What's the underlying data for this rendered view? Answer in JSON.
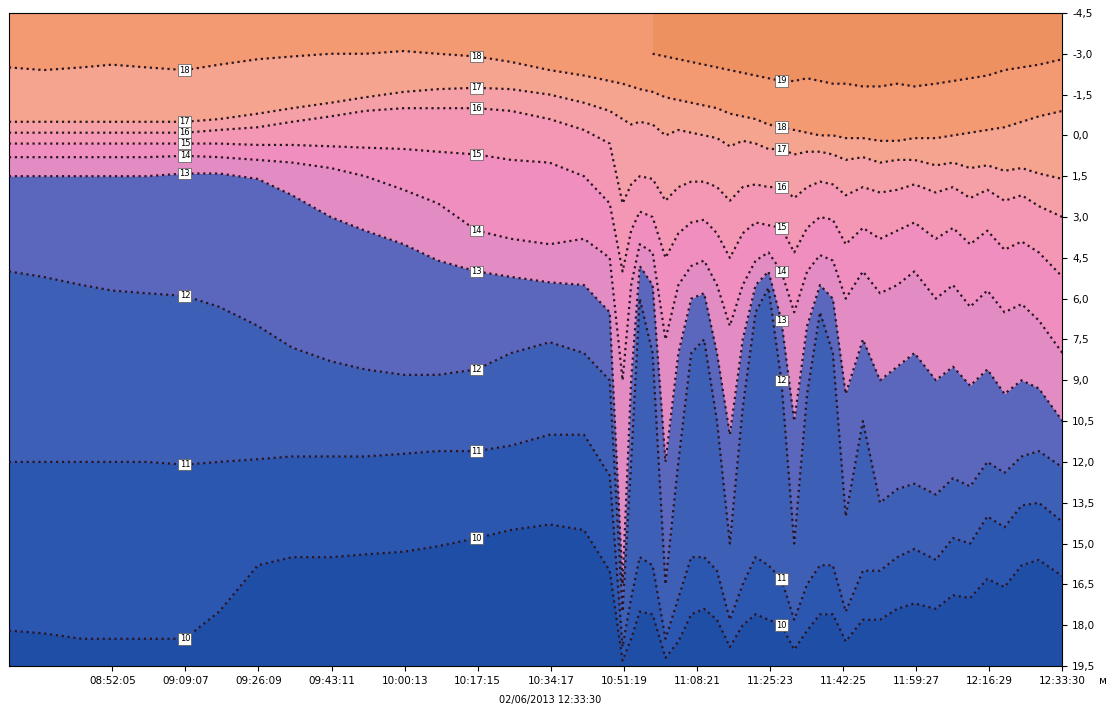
{
  "chart_data": {
    "type": "contour",
    "color": "#1f4ea6",
    "line_style": "dotted",
    "xlabel": "02/06/2013 12:33:30",
    "ylabel": "м",
    "x": [
      "08:28:00",
      "08:36:00",
      "08:45:00",
      "08:52:00",
      "09:00:00",
      "09:09:00",
      "09:17:00",
      "09:26:00",
      "09:34:00",
      "09:43:00",
      "09:51:00",
      "10:00:00",
      "10:08:00",
      "10:17:00",
      "10:25:00",
      "10:34:00",
      "10:42:00",
      "10:48:00",
      "10:51:00",
      "10:53:00",
      "10:55:00",
      "10:58:00",
      "11:01:00",
      "11:04:00",
      "11:07:00",
      "11:10:00",
      "11:13:00",
      "11:16:00",
      "11:19:00",
      "11:22:00",
      "11:25:00",
      "11:28:00",
      "11:31:00",
      "11:34:00",
      "11:37:00",
      "11:40:00",
      "11:43:00",
      "11:47:00",
      "11:51:00",
      "11:55:00",
      "11:59:00",
      "12:04:00",
      "12:08:00",
      "12:12:00",
      "12:16:00",
      "12:20:00",
      "12:24:00",
      "12:28:00",
      "12:33:30"
    ],
    "xlim": [
      "08:28:00",
      "12:33:30"
    ],
    "xticks": [
      "08:52:05",
      "09:09:07",
      "09:26:09",
      "09:43:11",
      "10:00:13",
      "10:17:15",
      "10:34:17",
      "10:51:19",
      "11:08:21",
      "11:25:23",
      "11:42:25",
      "11:59:27",
      "12:16:29",
      "12:33:30"
    ],
    "ylim": [
      19.5,
      -4.5
    ],
    "yticks": [
      {
        "value": -4.5,
        "label": "-4,5"
      },
      {
        "value": -3.0,
        "label": "-3,0"
      },
      {
        "value": -1.5,
        "label": "-1,5"
      },
      {
        "value": 0.0,
        "label": "0,0"
      },
      {
        "value": 1.5,
        "label": "1,5"
      },
      {
        "value": 3.0,
        "label": "3,0"
      },
      {
        "value": 4.5,
        "label": "4,5"
      },
      {
        "value": 6.0,
        "label": "6,0"
      },
      {
        "value": 7.5,
        "label": "7,5"
      },
      {
        "value": 9.0,
        "label": "9,0"
      },
      {
        "value": 10.5,
        "label": "10,5"
      },
      {
        "value": 12.0,
        "label": "12,0"
      },
      {
        "value": 13.5,
        "label": "13,5"
      },
      {
        "value": 15.0,
        "label": "15,0"
      },
      {
        "value": 16.5,
        "label": "16,5"
      },
      {
        "value": 18.0,
        "label": "18,0"
      },
      {
        "value": 19.5,
        "label": "19,5"
      }
    ],
    "series": [
      {
        "name": "19",
        "color": "#ee9160",
        "values": [
          null,
          null,
          null,
          null,
          null,
          null,
          null,
          null,
          null,
          null,
          null,
          null,
          null,
          null,
          null,
          null,
          null,
          null,
          null,
          null,
          null,
          -3.0,
          -2.9,
          -2.8,
          -2.7,
          -2.6,
          -2.5,
          -2.4,
          -2.3,
          -2.2,
          -2.1,
          -2.0,
          -2.0,
          -2.1,
          -2.0,
          -1.9,
          -1.9,
          -1.8,
          -1.8,
          -1.9,
          -1.8,
          -1.9,
          -2.0,
          -2.1,
          -2.2,
          -2.4,
          -2.5,
          -2.6,
          -2.8
        ]
      },
      {
        "name": "18",
        "color": "#f49a73",
        "values": [
          -2.5,
          -2.4,
          -2.5,
          -2.6,
          -2.5,
          -2.4,
          -2.6,
          -2.8,
          -2.9,
          -3.0,
          -3.0,
          -3.1,
          -3.0,
          -2.9,
          -2.7,
          -2.4,
          -2.2,
          -2.0,
          -1.9,
          -1.8,
          -1.7,
          -1.6,
          -1.4,
          -1.3,
          -1.2,
          -1.1,
          -1.0,
          -0.8,
          -0.7,
          -0.6,
          -0.4,
          -0.3,
          -0.2,
          -0.1,
          0.0,
          0.0,
          0.1,
          0.1,
          0.2,
          0.2,
          0.1,
          0.1,
          0.0,
          -0.1,
          -0.2,
          -0.3,
          -0.5,
          -0.7,
          -0.9
        ]
      },
      {
        "name": "17",
        "color": "#f5a58f",
        "values": [
          -0.5,
          -0.5,
          -0.5,
          -0.5,
          -0.5,
          -0.5,
          -0.6,
          -0.8,
          -1.0,
          -1.2,
          -1.4,
          -1.6,
          -1.7,
          -1.75,
          -1.7,
          -1.5,
          -1.2,
          -0.9,
          -0.6,
          -0.4,
          -0.5,
          -0.4,
          0.0,
          -0.2,
          -0.1,
          0.0,
          0.1,
          0.4,
          0.2,
          0.3,
          0.5,
          0.5,
          0.7,
          0.6,
          0.6,
          0.7,
          0.9,
          0.8,
          1.0,
          0.9,
          0.9,
          1.1,
          1.0,
          1.2,
          1.1,
          1.3,
          1.2,
          1.4,
          1.6
        ]
      },
      {
        "name": "16",
        "color": "#f5a0a6",
        "values": [
          -0.1,
          -0.1,
          -0.1,
          -0.1,
          -0.1,
          -0.1,
          -0.2,
          -0.3,
          -0.5,
          -0.7,
          -0.9,
          -1.0,
          -1.0,
          -1.0,
          -0.9,
          -0.6,
          -0.2,
          0.3,
          2.5,
          1.8,
          1.5,
          1.6,
          2.4,
          1.9,
          1.7,
          1.7,
          1.9,
          2.4,
          1.9,
          1.8,
          1.9,
          1.9,
          2.3,
          1.9,
          1.7,
          1.8,
          2.2,
          1.9,
          2.1,
          2.0,
          1.8,
          2.1,
          1.9,
          2.3,
          2.0,
          2.4,
          2.2,
          2.6,
          3.0
        ]
      },
      {
        "name": "15",
        "color": "#f497b4",
        "values": [
          0.3,
          0.3,
          0.3,
          0.3,
          0.3,
          0.3,
          0.3,
          0.35,
          0.35,
          0.4,
          0.45,
          0.5,
          0.6,
          0.7,
          0.9,
          1.0,
          1.5,
          2.5,
          5.0,
          3.5,
          2.8,
          3.0,
          4.5,
          3.6,
          3.2,
          3.1,
          3.6,
          4.5,
          3.6,
          3.2,
          3.3,
          3.4,
          4.3,
          3.4,
          3.0,
          3.1,
          4.0,
          3.4,
          3.8,
          3.5,
          3.2,
          3.8,
          3.4,
          4.0,
          3.5,
          4.2,
          3.9,
          4.3,
          5.2
        ]
      },
      {
        "name": "14",
        "color": "#f08fbf",
        "values": [
          0.8,
          0.8,
          0.8,
          0.8,
          0.8,
          0.75,
          0.8,
          0.9,
          1.0,
          1.2,
          1.5,
          2.0,
          2.5,
          3.5,
          3.8,
          4.0,
          3.8,
          4.5,
          9.0,
          5.5,
          4.0,
          4.3,
          7.5,
          5.5,
          4.8,
          4.6,
          5.5,
          7.0,
          5.5,
          4.6,
          4.3,
          5.0,
          6.5,
          5.0,
          4.4,
          4.6,
          6.0,
          5.0,
          5.8,
          5.5,
          5.0,
          6.0,
          5.5,
          6.3,
          5.7,
          6.5,
          6.2,
          6.8,
          8.0
        ]
      },
      {
        "name": "13",
        "color": "#e38cc4",
        "values": [
          1.5,
          1.5,
          1.5,
          1.5,
          1.5,
          1.4,
          1.4,
          1.6,
          2.2,
          3.0,
          3.5,
          4.0,
          4.6,
          5.0,
          5.2,
          5.4,
          5.5,
          6.5,
          16.5,
          9.0,
          4.8,
          5.5,
          12.0,
          8.0,
          6.0,
          5.8,
          8.0,
          11.0,
          7.5,
          5.5,
          5.0,
          6.8,
          10.5,
          7.0,
          5.5,
          6.0,
          9.5,
          7.5,
          9.0,
          8.5,
          8.0,
          9.0,
          8.5,
          9.2,
          8.6,
          9.5,
          9.0,
          9.3,
          10.5
        ]
      },
      {
        "name": "12",
        "color": "#5a67bd",
        "values": [
          5.0,
          5.2,
          5.5,
          5.7,
          5.8,
          5.9,
          6.3,
          7.0,
          7.8,
          8.3,
          8.6,
          8.8,
          8.8,
          8.6,
          8.0,
          7.6,
          8.0,
          9.0,
          17.5,
          12.0,
          6.0,
          8.0,
          16.5,
          12.0,
          8.0,
          7.5,
          10.5,
          15.0,
          10.0,
          6.5,
          5.6,
          9.0,
          15.0,
          9.5,
          6.5,
          8.0,
          14.0,
          10.5,
          13.5,
          13.0,
          12.8,
          13.2,
          12.6,
          12.9,
          12.0,
          12.4,
          11.8,
          11.6,
          12.2
        ]
      },
      {
        "name": "11",
        "color": "#3e5fb6",
        "values": [
          12.0,
          12.0,
          12.0,
          12.0,
          12.0,
          12.1,
          12.0,
          11.9,
          11.8,
          11.8,
          11.8,
          11.7,
          11.6,
          11.6,
          11.4,
          11.0,
          11.0,
          12.5,
          18.8,
          17.0,
          15.5,
          15.8,
          18.5,
          17.0,
          15.5,
          15.5,
          16.0,
          17.8,
          16.5,
          15.5,
          15.8,
          16.3,
          17.8,
          16.5,
          15.8,
          15.8,
          17.5,
          16.0,
          16.0,
          15.5,
          15.2,
          15.6,
          14.8,
          15.0,
          14.0,
          14.4,
          13.6,
          13.5,
          14.2
        ]
      },
      {
        "name": "10",
        "color": "#2c57b0",
        "values": [
          18.2,
          18.3,
          18.5,
          18.5,
          18.5,
          18.5,
          17.5,
          15.8,
          15.5,
          15.5,
          15.4,
          15.3,
          15.1,
          14.8,
          14.5,
          14.3,
          14.5,
          16.0,
          19.3,
          18.5,
          17.5,
          17.6,
          19.2,
          18.6,
          17.6,
          17.4,
          17.8,
          18.8,
          18.0,
          17.6,
          17.8,
          18.0,
          18.9,
          18.2,
          17.6,
          17.6,
          18.6,
          17.8,
          17.8,
          17.4,
          17.2,
          17.4,
          16.9,
          17.0,
          16.3,
          16.6,
          15.8,
          15.6,
          16.2
        ]
      }
    ]
  }
}
